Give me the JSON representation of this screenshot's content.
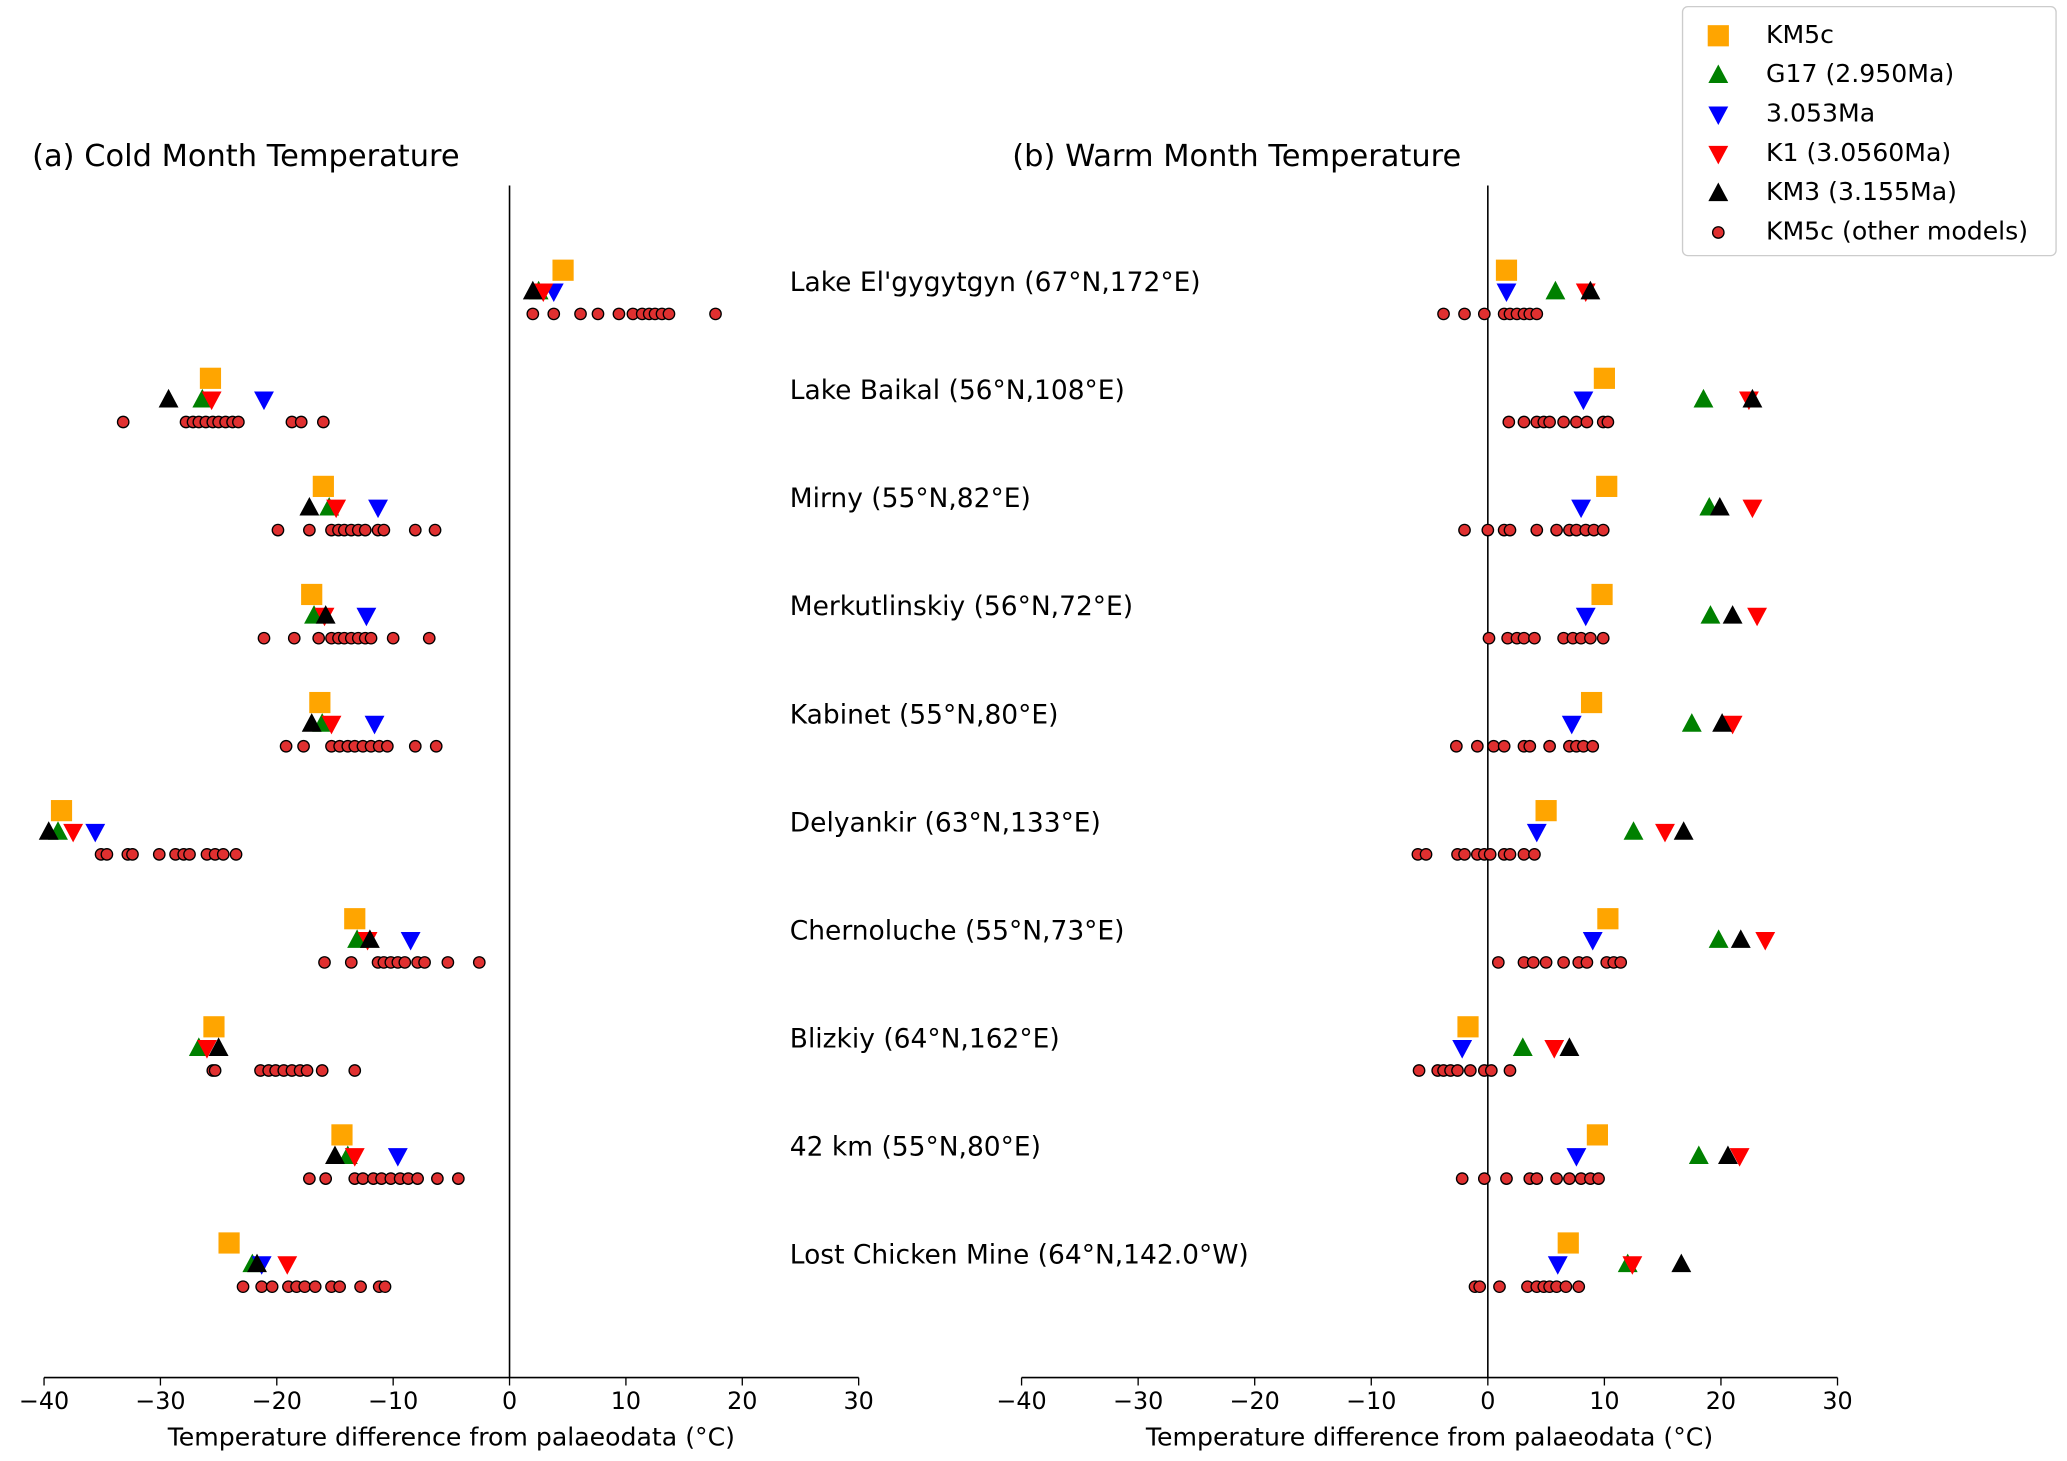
{
  "chart_data": {
    "type": "dot",
    "legend": "upper right",
    "categories": [
      "Lake El'gygytgyn (67°N,172°E)",
      "Lake Baikal (56°N,108°E)",
      "Mirny (55°N,82°E)",
      "Merkutlinskiy (56°N,72°E)",
      "Kabinet (55°N,80°E)",
      "Delyankir (63°N,133°E)",
      "Chernoluche (55°N,73°E)",
      "Blizkiy (64°N,162°E)",
      "42 km (55°N,80°E)",
      "Lost Chicken Mine (64°N,142.0°W)"
    ],
    "panels": [
      {
        "title": "(a) Cold Month Temperature",
        "xlabel": "Temperature difference from palaeodata (°C)",
        "xlim": [
          -40,
          30
        ],
        "xticks": [
          {
            "value": -40,
            "label": "−40"
          },
          {
            "value": -30,
            "label": "−30"
          },
          {
            "value": -20,
            "label": "−20"
          },
          {
            "value": -10,
            "label": "−10"
          },
          0,
          10,
          20,
          30
        ]
      },
      {
        "title": "(b) Warm Month Temperature",
        "xlabel": "Temperature difference from palaeodata (°C)",
        "xlim": [
          -40,
          30
        ],
        "xticks": [
          {
            "value": -40,
            "label": "−40"
          },
          {
            "value": -30,
            "label": "−30"
          },
          {
            "value": -20,
            "label": "−20"
          },
          {
            "value": -10,
            "label": "−10"
          },
          0,
          10,
          20,
          30
        ]
      }
    ],
    "series": [
      {
        "name": "KM5c",
        "color": "#ffa500",
        "marker": "square",
        "values": [
          [
            4.6,
            -25.7,
            -16.0,
            -17.0,
            -16.3,
            -38.5,
            -13.3,
            -25.4,
            -14.4,
            -24.1
          ],
          [
            1.6,
            10.0,
            10.2,
            9.8,
            8.9,
            5.0,
            10.3,
            -1.7,
            9.4,
            6.9
          ]
        ]
      },
      {
        "name": "G17 (2.950Ma)",
        "color": "#008000",
        "marker": "triangle-up",
        "values": [
          [
            2.5,
            -26.4,
            -15.5,
            -16.8,
            -16.1,
            -38.8,
            -13.1,
            -26.7,
            -13.9,
            -22.1
          ],
          [
            5.8,
            18.5,
            19.0,
            19.1,
            17.5,
            12.5,
            19.8,
            3.0,
            18.1,
            12.0
          ]
        ]
      },
      {
        "name": "3.053Ma",
        "color": "#0000ff",
        "marker": "triangle-down",
        "values": [
          [
            3.8,
            -21.1,
            -11.3,
            -12.3,
            -11.6,
            -35.6,
            -8.5,
            null,
            -9.6,
            -21.3
          ],
          [
            1.6,
            8.2,
            8.0,
            8.4,
            7.2,
            4.2,
            9.0,
            -2.2,
            7.6,
            6.0
          ]
        ]
      },
      {
        "name": "K1 (3.0560Ma)",
        "color": "#ff0000",
        "marker": "triangle-down",
        "values": [
          [
            2.9,
            -25.6,
            -14.9,
            -15.9,
            -15.3,
            -37.5,
            -12.2,
            -26.0,
            -13.3,
            -19.1
          ],
          [
            8.4,
            22.4,
            22.7,
            23.1,
            21.0,
            15.2,
            23.8,
            5.7,
            21.6,
            12.4
          ]
        ]
      },
      {
        "name": "KM3 (3.155Ma)",
        "color": "#000000",
        "marker": "triangle-up",
        "values": [
          [
            2.0,
            -29.3,
            -17.2,
            -15.8,
            -17.0,
            -39.6,
            -12.0,
            -25.0,
            -15.0,
            -21.7
          ],
          [
            8.8,
            22.7,
            19.9,
            21.0,
            20.1,
            16.8,
            21.7,
            7.0,
            20.6,
            16.6
          ]
        ]
      },
      {
        "name": "KM5c (other models)",
        "color": "#e03030",
        "marker": "circle",
        "values": [
          [
            [
              2.0,
              3.8,
              6.1,
              7.6,
              9.4,
              10.6,
              11.4,
              12.0,
              12.5,
              13.1,
              13.7,
              17.7
            ],
            [
              -33.2,
              -27.8,
              -27.2,
              -26.7,
              -26.1,
              -25.5,
              -25.0,
              -24.4,
              -23.8,
              -23.3,
              -18.7,
              -17.9,
              -16.0
            ],
            [
              -19.9,
              -17.2,
              -15.3,
              -14.7,
              -14.2,
              -13.6,
              -13.0,
              -12.4,
              -11.3,
              -10.8,
              -8.1,
              -6.4
            ],
            [
              -21.1,
              -18.5,
              -16.4,
              -15.3,
              -14.7,
              -14.2,
              -13.6,
              -13.0,
              -12.4,
              -11.9,
              -10.0,
              -6.9
            ],
            [
              -19.2,
              -17.7,
              -15.3,
              -14.6,
              -13.9,
              -13.3,
              -12.6,
              -11.9,
              -11.2,
              -10.5,
              -8.1,
              -6.3
            ],
            [
              -35.1,
              -34.6,
              -32.8,
              -32.4,
              -30.1,
              -28.7,
              -28.0,
              -27.5,
              -26.0,
              -25.3,
              -24.6,
              -23.5
            ],
            [
              -15.9,
              -13.6,
              -11.3,
              -10.8,
              -10.2,
              -9.6,
              -9.0,
              -7.9,
              -7.3,
              -5.3,
              -2.6
            ],
            [
              -25.5,
              -25.3,
              -21.4,
              -20.7,
              -20.1,
              -19.4,
              -18.7,
              -18.0,
              -17.4,
              -16.1,
              -13.3
            ],
            [
              -17.2,
              -15.8,
              -13.3,
              -12.6,
              -11.7,
              -11.0,
              -10.2,
              -9.4,
              -8.7,
              -7.9,
              -6.2,
              -4.4
            ],
            [
              -22.9,
              -21.3,
              -20.4,
              -19.0,
              -18.3,
              -17.6,
              -16.7,
              -15.3,
              -14.6,
              -12.8,
              -11.2,
              -10.7
            ]
          ],
          [
            [
              -3.8,
              -2.0,
              -0.3,
              1.4,
              1.9,
              2.5,
              3.1,
              3.6,
              4.2
            ],
            [
              1.8,
              3.1,
              4.2,
              4.8,
              5.3,
              6.5,
              7.6,
              8.5,
              9.9,
              10.3
            ],
            [
              -2.0,
              0,
              1.4,
              1.9,
              4.2,
              5.9,
              7.0,
              7.6,
              8.4,
              9.1,
              9.9
            ],
            [
              0.1,
              1.7,
              2.5,
              3.1,
              4.0,
              6.5,
              7.3,
              8.0,
              8.8,
              9.9
            ],
            [
              -2.7,
              -0.9,
              0.5,
              1.4,
              3.1,
              3.6,
              5.3,
              7.0,
              7.6,
              8.2,
              9.0
            ],
            [
              -6.0,
              -5.3,
              -2.6,
              -2.0,
              -0.9,
              -0.3,
              0.2,
              1.4,
              1.9,
              3.1,
              4.0
            ],
            [
              0.9,
              3.1,
              3.9,
              5.0,
              6.5,
              7.8,
              8.5,
              10.2,
              10.8,
              11.4
            ],
            [
              -5.9,
              -4.3,
              -3.8,
              -3.2,
              -2.6,
              -1.5,
              -0.3,
              0.3,
              1.9
            ],
            [
              -2.2,
              -0.3,
              1.6,
              3.6,
              4.2,
              5.9,
              7.0,
              8.0,
              8.8,
              9.5
            ],
            [
              -1.1,
              -0.7,
              1.0,
              3.4,
              4.2,
              4.8,
              5.3,
              5.9,
              6.7,
              7.8
            ]
          ]
        ]
      }
    ]
  }
}
